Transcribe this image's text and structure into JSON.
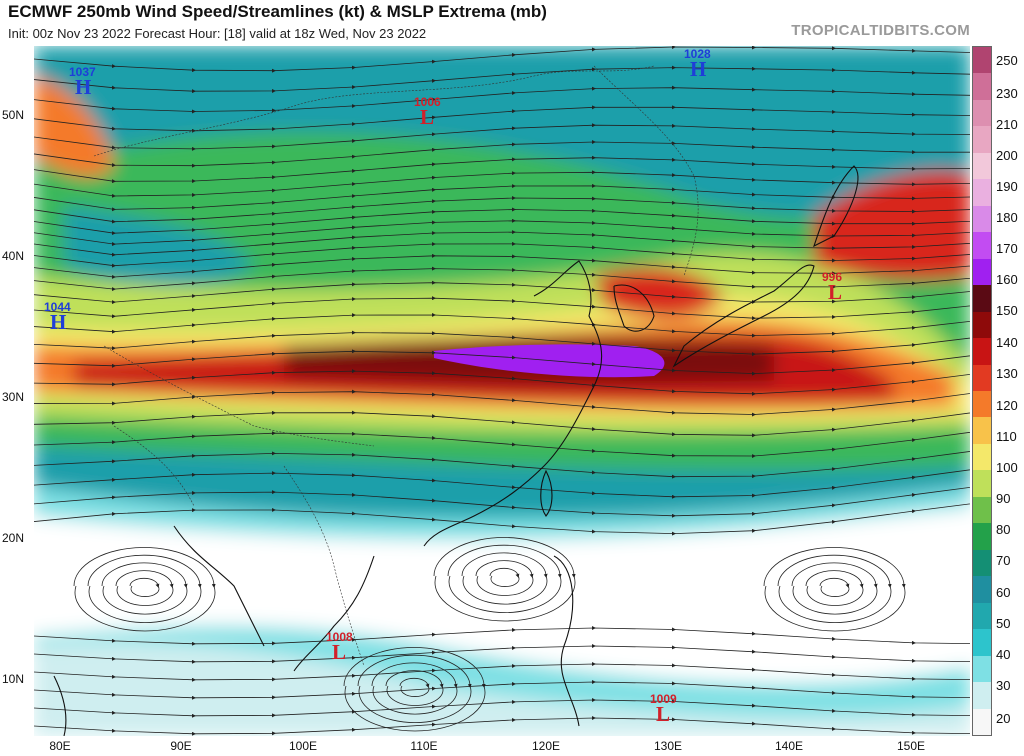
{
  "header": {
    "title": "ECMWF 250mb Wind Speed/Streamlines (kt) & MSLP Extrema (mb)",
    "subtitle": "Init: 00z Nov 23 2022   Forecast Hour: [18]   valid at 18z Wed, Nov 23 2022",
    "brand": "TROPICALTIDBITS.COM"
  },
  "axes": {
    "lat_labels": [
      "50N",
      "40N",
      "30N",
      "20N",
      "10N"
    ],
    "lon_labels": [
      "80E",
      "90E",
      "100E",
      "110E",
      "120E",
      "130E",
      "140E",
      "150E"
    ]
  },
  "colorbar": {
    "labels": [
      "250",
      "230",
      "210",
      "200",
      "190",
      "180",
      "170",
      "160",
      "150",
      "140",
      "130",
      "120",
      "110",
      "100",
      "90",
      "80",
      "70",
      "60",
      "50",
      "40",
      "30",
      "20"
    ],
    "colors": [
      "#f7f7f7",
      "#cfeef0",
      "#7ee0e4",
      "#2dc4cc",
      "#21a8ae",
      "#1f8fa0",
      "#148f74",
      "#23a14a",
      "#6fc04a",
      "#bfe05a",
      "#f4e86a",
      "#f8c24a",
      "#f47a2a",
      "#e23a22",
      "#c81414",
      "#8e0a0a",
      "#5a0a14",
      "#a020f0",
      "#c24cf2",
      "#d98ae8",
      "#eab0e0",
      "#f2c8da",
      "#e8a7c2",
      "#dd8fb0",
      "#cf6f98",
      "#b04470"
    ]
  },
  "pressure_centers": [
    {
      "type": "H",
      "value": "1037"
    },
    {
      "type": "H",
      "value": "1028"
    },
    {
      "type": "L",
      "value": "1006"
    },
    {
      "type": "H",
      "value": "1044"
    },
    {
      "type": "L",
      "value": "996"
    },
    {
      "type": "L",
      "value": "1008"
    },
    {
      "type": "L",
      "value": "1009"
    }
  ]
}
